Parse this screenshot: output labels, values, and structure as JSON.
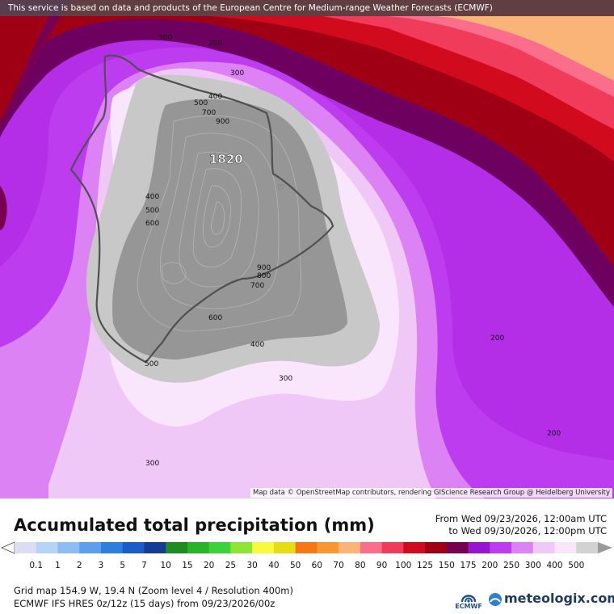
{
  "notice": "This service is based on data and products of the European Centre for Medium-range Weather Forecasts (ECMWF)",
  "attribution": "Map data © OpenStreetMap contributors, rendering GIScience Research Group @ Heidelberg University",
  "map": {
    "peak_label": "1820",
    "contour_labels": [
      "300",
      "200",
      "300",
      "400",
      "500",
      "700",
      "900",
      "400",
      "500",
      "600",
      "900",
      "800",
      "700",
      "600",
      "500",
      "400",
      "300",
      "200",
      "200",
      "300"
    ]
  },
  "legend": {
    "title": "Accumulated total precipitation (mm)",
    "from": "From Wed 09/23/2026, 12:00am UTC",
    "to": "to Wed 09/30/2026, 12:00pm UTC",
    "levels": [
      "0.1",
      "1",
      "2",
      "3",
      "5",
      "7",
      "10",
      "15",
      "20",
      "25",
      "30",
      "40",
      "50",
      "60",
      "70",
      "80",
      "90",
      "100",
      "125",
      "150",
      "175",
      "200",
      "250",
      "300",
      "400",
      "500"
    ],
    "colors": [
      "#dcdcf2",
      "#b4d4fa",
      "#8cbef5",
      "#5aa0ee",
      "#2e7ee0",
      "#1a5cc8",
      "#143c96",
      "#1e8c1e",
      "#28b428",
      "#3cd23c",
      "#8ce632",
      "#fafa3c",
      "#e6dc14",
      "#f57814",
      "#fa9632",
      "#fab478",
      "#fa6e8c",
      "#f03c5a",
      "#d20a1e",
      "#a00014",
      "#780050",
      "#9614d2",
      "#be3cf0",
      "#dc82f5",
      "#f0c8f8",
      "#fae6fc",
      "#d2d2d2"
    ]
  },
  "footer": {
    "grid": "Grid map 154.9 W, 19.4 N (Zoom level 4 / Resolution 400m)",
    "model": "ECMWF IFS HRES 0z/12z (15 days) from 09/23/2026/00z",
    "ecmwf_logo": "ECMWF",
    "meteologix_logo": "meteologix.com"
  }
}
